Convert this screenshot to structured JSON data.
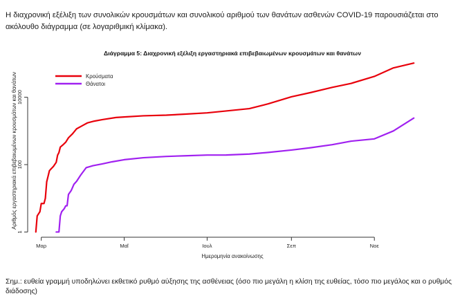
{
  "intro_text": "Η διαχρονική εξέλιξη των συνολικών κρουσμάτων και συνολικού αριθμού των θανάτων ασθενών COVID-19 παρουσιάζεται στο ακόλουθο διάγραμμα (σε λογαριθμική κλίμακα).",
  "note_text": "Σημ.: ευθεία γραμμή υποδηλώνει εκθετικό ρυθμό αύξησης της ασθένειας (όσο πιο μεγάλη η κλίση της ευθείας, τόσο πιο μεγάλος και ο ρυθμός διάδοσης)",
  "chart_data": {
    "type": "line",
    "title": "Διάγραμμα 5: Διαχρονική εξέλιξη εργαστηριακά επιβεβαιωμένων κρουσμάτων και θανάτων",
    "xlabel": "Ημερομηνία ανακοίνωσης",
    "ylabel": "Αριθμός εργαστηριακά επιβεβαιωμένων κρουσμάτων και θανάτων",
    "y_scale": "log",
    "ylim": [
      0.7,
      120000
    ],
    "yticks": [
      1,
      100,
      10000
    ],
    "ytick_labels": [
      "1",
      "100",
      "10000"
    ],
    "xlim": [
      "2020-02-20",
      "2020-12-06"
    ],
    "xticks": [
      "2020-03-01",
      "2020-05-01",
      "2020-07-01",
      "2020-09-01",
      "2020-11-01"
    ],
    "xtick_labels": [
      "Μαρ",
      "Μαΐ",
      "Ιουλ",
      "Σεπ",
      "Νοε"
    ],
    "grid": false,
    "legend_position": "top-left",
    "series": [
      {
        "name": "Κρούσματα",
        "color": "#e8000b",
        "points": [
          [
            "2020-02-26",
            1
          ],
          [
            "2020-02-27",
            3
          ],
          [
            "2020-02-29",
            4
          ],
          [
            "2020-03-01",
            7
          ],
          [
            "2020-03-03",
            7
          ],
          [
            "2020-03-04",
            10
          ],
          [
            "2020-03-05",
            31
          ],
          [
            "2020-03-06",
            45
          ],
          [
            "2020-03-07",
            66
          ],
          [
            "2020-03-08",
            73
          ],
          [
            "2020-03-10",
            89
          ],
          [
            "2020-03-12",
            117
          ],
          [
            "2020-03-13",
            190
          ],
          [
            "2020-03-14",
            228
          ],
          [
            "2020-03-15",
            331
          ],
          [
            "2020-03-17",
            387
          ],
          [
            "2020-03-19",
            464
          ],
          [
            "2020-03-21",
            624
          ],
          [
            "2020-03-24",
            821
          ],
          [
            "2020-03-27",
            1156
          ],
          [
            "2020-03-31",
            1415
          ],
          [
            "2020-04-04",
            1735
          ],
          [
            "2020-04-09",
            1955
          ],
          [
            "2020-04-15",
            2170
          ],
          [
            "2020-04-25",
            2506
          ],
          [
            "2020-05-01",
            2591
          ],
          [
            "2020-05-15",
            2810
          ],
          [
            "2020-06-01",
            2937
          ],
          [
            "2020-06-15",
            3148
          ],
          [
            "2020-07-01",
            3432
          ],
          [
            "2020-07-15",
            3910
          ],
          [
            "2020-08-01",
            4587
          ],
          [
            "2020-08-15",
            6381
          ],
          [
            "2020-09-01",
            10317
          ],
          [
            "2020-09-15",
            13730
          ],
          [
            "2020-10-01",
            19613
          ],
          [
            "2020-10-15",
            25802
          ],
          [
            "2020-11-01",
            41527
          ],
          [
            "2020-11-15",
            74205
          ],
          [
            "2020-11-30",
            103034
          ]
        ]
      },
      {
        "name": "Θάνατοι",
        "color": "#a020f0",
        "points": [
          [
            "2020-03-12",
            1
          ],
          [
            "2020-03-14",
            1
          ],
          [
            "2020-03-15",
            3
          ],
          [
            "2020-03-16",
            4
          ],
          [
            "2020-03-18",
            5
          ],
          [
            "2020-03-19",
            6
          ],
          [
            "2020-03-20",
            6
          ],
          [
            "2020-03-21",
            13
          ],
          [
            "2020-03-23",
            17
          ],
          [
            "2020-03-25",
            26
          ],
          [
            "2020-03-27",
            32
          ],
          [
            "2020-03-30",
            49
          ],
          [
            "2020-04-03",
            81
          ],
          [
            "2020-04-08",
            93
          ],
          [
            "2020-04-15",
            105
          ],
          [
            "2020-04-22",
            121
          ],
          [
            "2020-05-01",
            140
          ],
          [
            "2020-05-15",
            160
          ],
          [
            "2020-06-01",
            175
          ],
          [
            "2020-06-15",
            183
          ],
          [
            "2020-07-01",
            192
          ],
          [
            "2020-07-15",
            193
          ],
          [
            "2020-08-01",
            206
          ],
          [
            "2020-08-15",
            230
          ],
          [
            "2020-09-01",
            271
          ],
          [
            "2020-09-15",
            317
          ],
          [
            "2020-10-01",
            391
          ],
          [
            "2020-10-15",
            497
          ],
          [
            "2020-11-01",
            581
          ],
          [
            "2020-11-15",
            1000
          ],
          [
            "2020-11-30",
            2406
          ]
        ]
      }
    ]
  }
}
